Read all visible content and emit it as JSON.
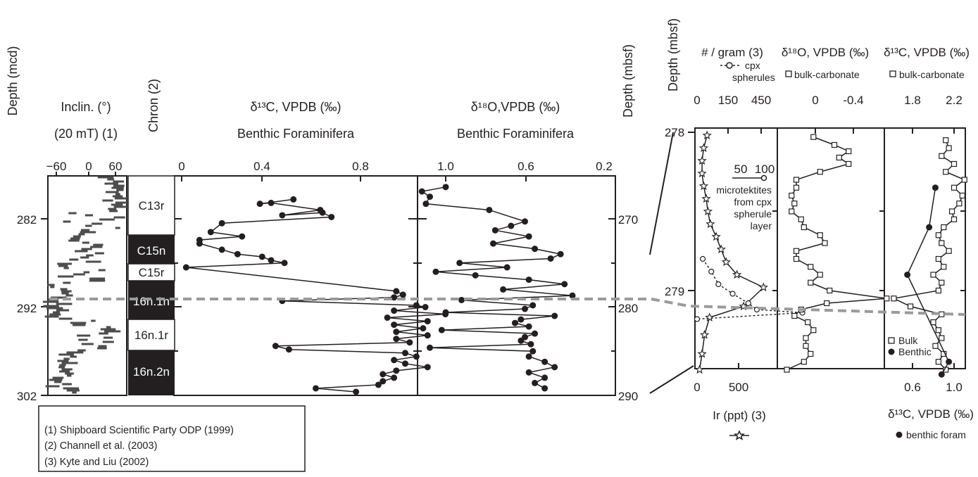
{
  "left": {
    "depth_mcd_label": "Depth (mcd)",
    "depth_mcd_ticks": [
      "282",
      "292",
      "302"
    ],
    "depth_mbsf_label": "Depth (mbsf)",
    "depth_mbsf_ticks": [
      "270",
      "280",
      "290"
    ],
    "incl_label_1": "Inclin. (°)",
    "incl_label_2": "(20 mT) (1)",
    "incl_ticks": [
      "−60",
      "0",
      "60"
    ],
    "chron_label": "Chron (2)",
    "chrons": [
      "C13r",
      "C15n",
      "C15r",
      "16n.1n",
      "16n.1r",
      "16n.2n"
    ],
    "d13c_label_1": "δ¹³C, VPDB (‰)",
    "d13c_label_2": "Benthic Foraminifera",
    "d13c_ticks": [
      "0",
      "0.4",
      "0.8"
    ],
    "d18o_label_1": "δ¹⁸O,VPDB (‰)",
    "d18o_label_2": "Benthic Foraminifera",
    "d18o_ticks": [
      "1.0",
      "0.6",
      "0.2"
    ]
  },
  "refs": [
    "(1) Shipboard Scientific Party ODP (1999)",
    "(2) Channell et al. (2003)",
    "(3) Kyte and Liu (2002)"
  ],
  "right": {
    "depth_label": "Depth (mbsf)",
    "depth_ticks": [
      "278",
      "279"
    ],
    "p1_title": "# / gram (3)",
    "p1_legend_cpx": "cpx",
    "p1_legend_cpx2": "spherules",
    "p1_top_ticks": [
      "0",
      "150",
      "450"
    ],
    "p1_inner_ticks": [
      "50",
      "100"
    ],
    "p1_inner_label_1": "microtektites",
    "p1_inner_label_2": "from cpx",
    "p1_inner_label_3": "spherule",
    "p1_inner_label_4": "layer",
    "p1_bottom_ticks": [
      "0",
      "500"
    ],
    "ir_label": "Ir (ppt)  (3)",
    "p2_title": "δ¹⁸O, VPDB (‰)",
    "p2_legend": "bulk-carbonate",
    "p2_ticks": [
      "0",
      "-0.4"
    ],
    "p3_title": "δ¹³C, VPDB (‰)",
    "p3_legend": "bulk-carbonate",
    "p3_top_ticks": [
      "1.8",
      "2.2"
    ],
    "p3_bottom_ticks": [
      "0.6",
      "1.0"
    ],
    "p3_bottom_label": "δ¹³C, VPDB (‰)",
    "p3_bottom_legend": "benthic foram",
    "p3_legend_bulk": "Bulk",
    "p3_legend_benthic": "Benthic"
  },
  "chart_data": [
    {
      "type": "line",
      "panel": "benthic-d13c",
      "xlabel": "δ¹³C, VPDB (‰) Benthic Foraminifera",
      "ylabel": "Depth (mcd)",
      "xlim": [
        0,
        1.2
      ],
      "ylim": [
        302,
        278.3
      ],
      "depth": [
        279.8,
        280.3,
        280.2,
        281.0,
        281.6,
        281.3,
        281.8,
        282.5,
        283.5,
        284.0,
        284.4,
        284.8,
        285.5,
        286.0,
        286.3,
        286.7,
        287.0,
        287.5,
        290.2,
        290.6,
        290.9,
        291.3,
        291.8,
        292.0,
        292.4,
        292.8,
        293.2,
        293.6,
        294.0,
        294.4,
        294.8,
        295.2,
        295.6,
        296.0,
        296.4,
        296.8,
        297.2,
        297.6,
        298.0,
        298.4,
        298.8,
        299.2,
        299.6,
        300.0,
        300.4,
        300.8,
        301.2,
        301.6
      ],
      "values": [
        0.5,
        0.35,
        0.4,
        0.62,
        0.45,
        0.63,
        0.67,
        0.18,
        0.13,
        0.27,
        0.08,
        0.08,
        0.18,
        0.25,
        0.36,
        0.4,
        0.46,
        0.02,
        0.96,
        0.99,
        0.95,
        0.45,
        1.05,
        1.09,
        0.95,
        1.18,
        0.92,
        1.1,
        0.95,
        1.08,
        0.96,
        1.1,
        0.96,
        1.02,
        0.42,
        0.48,
        1.0,
        1.05,
        0.95,
        1.0,
        1.1,
        0.96,
        0.9,
        0.95,
        0.9,
        0.88,
        0.6,
        0.78
      ]
    },
    {
      "type": "line",
      "panel": "benthic-d18o",
      "xlabel": "δ¹⁸O,VPDB (‰) Benthic Foraminifera",
      "ylabel": "Depth (mbsf)",
      "xlim": [
        1.2,
        0.2
      ],
      "ylim": [
        266,
        290
      ],
      "depth": [
        266.4,
        266.9,
        267.5,
        268.3,
        269.0,
        270.3,
        270.8,
        271.3,
        272.0,
        272.8,
        273.4,
        274.0,
        274.5,
        275.0,
        275.5,
        276.0,
        276.4,
        276.9,
        277.4,
        278.0,
        278.7,
        279.2,
        279.8,
        280.2,
        280.6,
        281.0,
        281.4,
        281.8,
        282.2,
        282.6,
        283.0,
        283.4,
        283.8,
        284.2,
        284.6,
        285.0,
        285.6,
        286.2,
        286.8,
        287.4,
        288.0,
        288.6,
        289.2
      ],
      "values": [
        1.0,
        1.12,
        1.08,
        1.1,
        0.78,
        0.6,
        0.67,
        0.75,
        0.58,
        0.76,
        0.55,
        0.42,
        0.47,
        0.93,
        0.69,
        1.05,
        0.85,
        0.58,
        0.4,
        0.71,
        0.36,
        0.92,
        0.56,
        0.6,
        1.0,
        0.45,
        0.62,
        0.65,
        0.58,
        1.02,
        0.55,
        0.6,
        0.62,
        0.57,
        1.08,
        0.56,
        0.58,
        0.5,
        0.45,
        0.58,
        0.5,
        0.55,
        0.5
      ]
    },
    {
      "type": "line",
      "panel": "ir-and-spherules",
      "title": "# / gram (3)",
      "xlabel": "Ir (ppt)  (3)",
      "ylabel": "Depth (mbsf)",
      "ylim": [
        278,
        279.55
      ],
      "series": [
        {
          "name": "Ir (ppt)",
          "depth": [
            278.02,
            278.1,
            278.18,
            278.26,
            278.34,
            278.42,
            278.5,
            278.58,
            278.66,
            278.74,
            278.82,
            278.9,
            278.98,
            279.1,
            279.17,
            279.28,
            279.4,
            279.5
          ],
          "values": [
            120,
            80,
            60,
            60,
            80,
            110,
            130,
            160,
            230,
            290,
            350,
            480,
            800,
            560,
            150,
            90,
            60,
            30
          ]
        },
        {
          "name": "cpx spherules",
          "depth": [
            278.8,
            278.88,
            278.96,
            279.02,
            279.08,
            279.12,
            279.14,
            279.18
          ],
          "values": [
            40,
            100,
            150,
            250,
            360,
            420,
            740,
            0
          ]
        }
      ]
    },
    {
      "type": "line",
      "panel": "bulk-d18o",
      "title": "δ¹⁸O, VPDB (‰)",
      "xlim": [
        0.3,
        -0.8
      ],
      "ylim": [
        278,
        279.55
      ],
      "series": [
        {
          "name": "bulk-carbonate",
          "depth": [
            278.03,
            278.08,
            278.12,
            278.16,
            278.2,
            278.25,
            278.3,
            278.35,
            278.4,
            278.45,
            278.5,
            278.55,
            278.6,
            278.65,
            278.7,
            278.75,
            278.8,
            278.85,
            278.9,
            278.95,
            279.0,
            279.05,
            279.08,
            279.12,
            279.16,
            279.2,
            279.25,
            279.3,
            279.35,
            279.4,
            279.45,
            279.5
          ],
          "values": [
            0.02,
            -0.2,
            -0.35,
            -0.25,
            -0.35,
            -0.05,
            0.2,
            0.2,
            0.25,
            0.22,
            0.25,
            0.15,
            0.12,
            -0.05,
            -0.1,
            0.2,
            0.2,
            0.05,
            -0.05,
            0.05,
            -0.15,
            -0.75,
            -0.12,
            0.15,
            0.22,
            0.08,
            0.02,
            0.1,
            0.1,
            0.05,
            0.12,
            0.3
          ]
        }
      ]
    },
    {
      "type": "line",
      "panel": "bulk-and-benthic-d13c",
      "title": "δ¹³C, VPDB (‰)",
      "xlabel": "δ¹³C, VPDB (‰)",
      "ylim": [
        278,
        279.55
      ],
      "series": [
        {
          "name": "Bulk",
          "depth": [
            278.05,
            278.1,
            278.15,
            278.2,
            278.25,
            278.3,
            278.35,
            278.4,
            278.45,
            278.5,
            278.55,
            278.6,
            278.65,
            278.7,
            278.75,
            278.8,
            278.85,
            278.9,
            278.95,
            279.0,
            279.05,
            279.1,
            279.15,
            279.2,
            279.25,
            279.3,
            279.35,
            279.4,
            279.45,
            279.5
          ],
          "values": [
            2.12,
            2.15,
            2.08,
            2.2,
            2.12,
            2.3,
            2.2,
            2.28,
            2.25,
            2.18,
            2.2,
            2.1,
            2.05,
            2.08,
            2.15,
            2.05,
            2.1,
            2.0,
            2.08,
            2.05,
            1.62,
            1.78,
            2.08,
            2.0,
            2.05,
            2.08,
            2.02,
            2.1,
            2.05,
            2.12
          ]
        },
        {
          "name": "Benthic",
          "depth": [
            278.35,
            278.6,
            278.9,
            279.45,
            279.53
          ],
          "values": [
            0.82,
            0.76,
            0.55,
            0.95,
            0.88
          ]
        }
      ]
    }
  ]
}
